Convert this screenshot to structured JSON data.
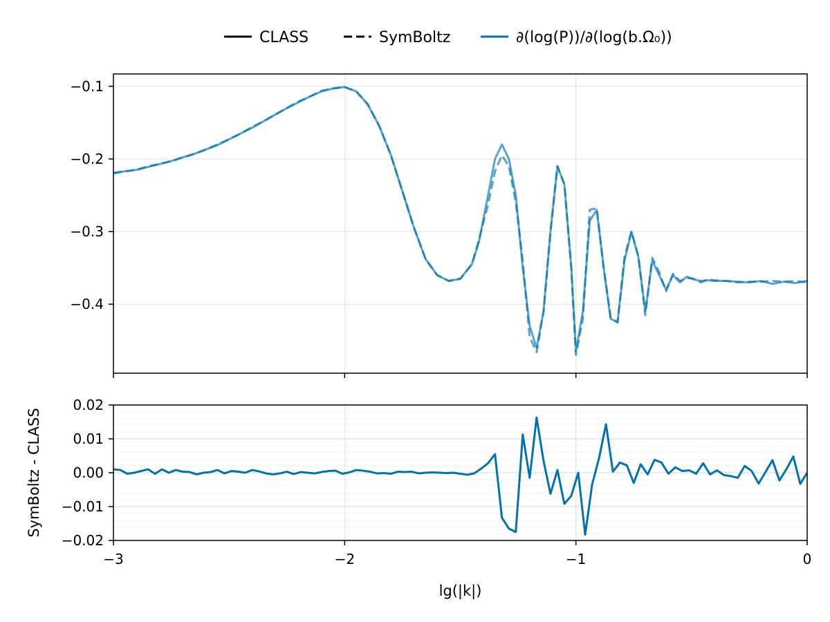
{
  "legend": {
    "items": [
      {
        "label": "CLASS",
        "style": "solid",
        "color": "#000000"
      },
      {
        "label": "SymBoltz",
        "style": "dashed",
        "color": "#000000"
      },
      {
        "label": "∂(log(P))/∂(log(b.Ω₀))",
        "style": "solid",
        "color": "#0072b2"
      }
    ]
  },
  "chart_data": [
    {
      "type": "line",
      "title": "",
      "xlabel": "",
      "ylabel": "",
      "xlim": [
        -3,
        0
      ],
      "ylim": [
        -0.495,
        -0.083
      ],
      "xticks": [
        -3,
        -2,
        -1,
        0
      ],
      "xtick_labels": [
        "",
        "",
        "",
        ""
      ],
      "yticks": [
        -0.1,
        -0.2,
        -0.3,
        -0.4
      ],
      "ytick_labels": [
        "−0.1",
        "−0.2",
        "−0.3",
        "−0.4"
      ],
      "grid": true,
      "color": "#0072b2",
      "series": [
        {
          "name": "CLASS",
          "style": "solid",
          "x": [
            -3.0,
            -2.95,
            -2.9,
            -2.85,
            -2.8,
            -2.75,
            -2.7,
            -2.65,
            -2.6,
            -2.55,
            -2.5,
            -2.45,
            -2.4,
            -2.35,
            -2.3,
            -2.25,
            -2.2,
            -2.15,
            -2.1,
            -2.05,
            -2.0,
            -1.95,
            -1.9,
            -1.85,
            -1.8,
            -1.75,
            -1.7,
            -1.65,
            -1.6,
            -1.55,
            -1.5,
            -1.45,
            -1.42,
            -1.38,
            -1.35,
            -1.32,
            -1.29,
            -1.26,
            -1.23,
            -1.2,
            -1.17,
            -1.14,
            -1.11,
            -1.08,
            -1.05,
            -1.02,
            -1.0,
            -0.97,
            -0.94,
            -0.91,
            -0.88,
            -0.85,
            -0.82,
            -0.79,
            -0.76,
            -0.73,
            -0.7,
            -0.67,
            -0.64,
            -0.61,
            -0.58,
            -0.55,
            -0.52,
            -0.49,
            -0.46,
            -0.43,
            -0.4,
            -0.35,
            -0.3,
            -0.25,
            -0.2,
            -0.15,
            -0.1,
            -0.05,
            0.0
          ],
          "y": [
            -0.22,
            -0.217,
            -0.215,
            -0.211,
            -0.207,
            -0.203,
            -0.198,
            -0.193,
            -0.187,
            -0.181,
            -0.173,
            -0.165,
            -0.157,
            -0.148,
            -0.139,
            -0.13,
            -0.122,
            -0.114,
            -0.107,
            -0.103,
            -0.101,
            -0.107,
            -0.125,
            -0.155,
            -0.195,
            -0.245,
            -0.295,
            -0.338,
            -0.36,
            -0.368,
            -0.365,
            -0.345,
            -0.315,
            -0.25,
            -0.2,
            -0.18,
            -0.2,
            -0.25,
            -0.35,
            -0.43,
            -0.46,
            -0.41,
            -0.3,
            -0.21,
            -0.235,
            -0.35,
            -0.465,
            -0.41,
            -0.285,
            -0.27,
            -0.35,
            -0.42,
            -0.425,
            -0.34,
            -0.3,
            -0.335,
            -0.41,
            -0.34,
            -0.36,
            -0.38,
            -0.36,
            -0.37,
            -0.362,
            -0.366,
            -0.368,
            -0.367,
            -0.368,
            -0.368,
            -0.369,
            -0.37,
            -0.368,
            -0.372,
            -0.369,
            -0.371,
            -0.368
          ]
        },
        {
          "name": "SymBoltz",
          "style": "dashed",
          "x": [
            -3.0,
            -2.95,
            -2.9,
            -2.85,
            -2.8,
            -2.75,
            -2.7,
            -2.65,
            -2.6,
            -2.55,
            -2.5,
            -2.45,
            -2.4,
            -2.35,
            -2.3,
            -2.25,
            -2.2,
            -2.15,
            -2.1,
            -2.05,
            -2.0,
            -1.95,
            -1.9,
            -1.85,
            -1.8,
            -1.75,
            -1.7,
            -1.65,
            -1.6,
            -1.55,
            -1.5,
            -1.45,
            -1.42,
            -1.38,
            -1.35,
            -1.32,
            -1.29,
            -1.26,
            -1.23,
            -1.2,
            -1.17,
            -1.14,
            -1.11,
            -1.08,
            -1.05,
            -1.02,
            -1.0,
            -0.97,
            -0.94,
            -0.91,
            -0.88,
            -0.85,
            -0.82,
            -0.79,
            -0.76,
            -0.73,
            -0.7,
            -0.67,
            -0.64,
            -0.61,
            -0.58,
            -0.55,
            -0.52,
            -0.49,
            -0.46,
            -0.43,
            -0.4,
            -0.35,
            -0.3,
            -0.25,
            -0.2,
            -0.15,
            -0.1,
            -0.05,
            0.0
          ],
          "y": [
            -0.219,
            -0.217,
            -0.215,
            -0.21,
            -0.207,
            -0.203,
            -0.198,
            -0.193,
            -0.187,
            -0.18,
            -0.173,
            -0.165,
            -0.156,
            -0.148,
            -0.139,
            -0.13,
            -0.121,
            -0.114,
            -0.106,
            -0.103,
            -0.101,
            -0.107,
            -0.125,
            -0.155,
            -0.195,
            -0.245,
            -0.295,
            -0.338,
            -0.36,
            -0.368,
            -0.365,
            -0.345,
            -0.312,
            -0.263,
            -0.217,
            -0.195,
            -0.21,
            -0.26,
            -0.34,
            -0.445,
            -0.466,
            -0.41,
            -0.3,
            -0.21,
            -0.235,
            -0.35,
            -0.47,
            -0.42,
            -0.27,
            -0.268,
            -0.35,
            -0.418,
            -0.425,
            -0.335,
            -0.3,
            -0.334,
            -0.415,
            -0.336,
            -0.356,
            -0.382,
            -0.358,
            -0.368,
            -0.364,
            -0.365,
            -0.37,
            -0.366,
            -0.367,
            -0.368,
            -0.37,
            -0.369,
            -0.369,
            -0.368,
            -0.369,
            -0.368,
            -0.37
          ]
        }
      ]
    },
    {
      "type": "line",
      "title": "",
      "xlabel": "lg(|k|)",
      "ylabel": "SymBoltz - CLASS",
      "xlim": [
        -3,
        0
      ],
      "ylim": [
        -0.02,
        0.02
      ],
      "xticks": [
        -3,
        -2,
        -1,
        0
      ],
      "xtick_labels": [
        "−3",
        "−2",
        "−1",
        "0"
      ],
      "yticks": [
        0.02,
        0.01,
        0.0,
        -0.01,
        -0.02
      ],
      "ytick_labels": [
        "0.02",
        "0.01",
        "0.00",
        "−0.01",
        "−0.02"
      ],
      "grid": true,
      "color": "#0072b2",
      "series": [
        {
          "name": "",
          "x": [
            -3.0,
            -2.97,
            -2.94,
            -2.91,
            -2.88,
            -2.85,
            -2.82,
            -2.79,
            -2.76,
            -2.73,
            -2.7,
            -2.67,
            -2.64,
            -2.61,
            -2.58,
            -2.55,
            -2.52,
            -2.49,
            -2.46,
            -2.43,
            -2.4,
            -2.37,
            -2.34,
            -2.31,
            -2.28,
            -2.25,
            -2.22,
            -2.19,
            -2.16,
            -2.13,
            -2.1,
            -2.07,
            -2.04,
            -2.01,
            -1.98,
            -1.95,
            -1.92,
            -1.89,
            -1.86,
            -1.83,
            -1.8,
            -1.77,
            -1.74,
            -1.71,
            -1.68,
            -1.65,
            -1.62,
            -1.59,
            -1.56,
            -1.53,
            -1.5,
            -1.47,
            -1.44,
            -1.41,
            -1.38,
            -1.35,
            -1.32,
            -1.29,
            -1.26,
            -1.23,
            -1.2,
            -1.17,
            -1.14,
            -1.11,
            -1.08,
            -1.05,
            -1.02,
            -0.99,
            -0.96,
            -0.93,
            -0.9,
            -0.87,
            -0.84,
            -0.81,
            -0.78,
            -0.75,
            -0.72,
            -0.69,
            -0.66,
            -0.63,
            -0.6,
            -0.57,
            -0.54,
            -0.51,
            -0.48,
            -0.45,
            -0.42,
            -0.39,
            -0.36,
            -0.33,
            -0.3,
            -0.27,
            -0.24,
            -0.21,
            -0.18,
            -0.15,
            -0.12,
            -0.09,
            -0.06,
            -0.03,
            0.0
          ],
          "y": [
            0.001,
            0.0008,
            -0.0003,
            0.0,
            0.0005,
            0.001,
            -0.0003,
            0.001,
            0.0,
            0.0008,
            0.0003,
            0.0002,
            -0.0005,
            0.0,
            0.0002,
            0.0008,
            -0.0002,
            0.0005,
            0.0003,
            0.0,
            0.0008,
            0.0004,
            -0.0002,
            -0.0005,
            -0.0002,
            0.0003,
            -0.0004,
            0.0002,
            0.0,
            -0.0002,
            0.0002,
            0.0005,
            0.0006,
            -0.0003,
            0.0001,
            0.0008,
            0.0006,
            0.0003,
            -0.0002,
            -0.0001,
            -0.0003,
            0.0003,
            0.0002,
            0.0003,
            -0.0002,
            0.0,
            0.0001,
            0.0,
            -0.0001,
            0.0,
            -0.0003,
            -0.0006,
            -0.0002,
            0.0012,
            0.0028,
            0.0055,
            -0.0133,
            -0.0165,
            -0.0175,
            0.0113,
            -0.0015,
            0.0163,
            0.0035,
            -0.0062,
            0.0008,
            -0.0092,
            -0.0068,
            0.0,
            -0.0183,
            -0.0035,
            0.0043,
            0.0143,
            0.0003,
            0.003,
            0.0022,
            -0.003,
            0.0025,
            -0.0005,
            0.0038,
            0.003,
            -0.0003,
            0.0016,
            0.0005,
            0.0007,
            -0.0003,
            0.0028,
            -0.0005,
            0.0007,
            -0.0007,
            -0.001,
            -0.0015,
            0.002,
            0.0005,
            -0.0032,
            0.0002,
            0.0037,
            -0.0023,
            0.001,
            0.0048,
            -0.0033,
            0.0
          ]
        }
      ]
    }
  ]
}
